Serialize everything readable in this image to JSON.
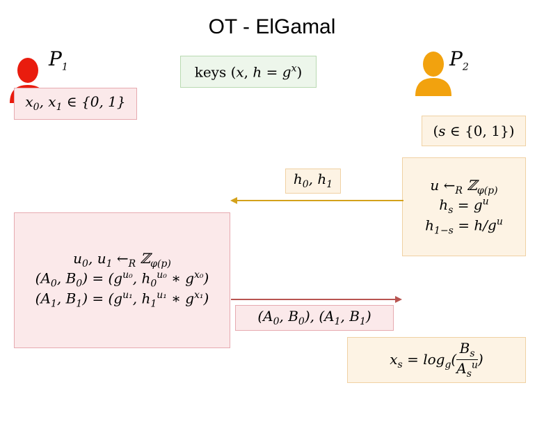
{
  "title": "OT - ElGamal",
  "party1": {
    "label": "P1",
    "color": "#e91c0e",
    "inputs": "x0, x1 ∈ {0,1}"
  },
  "party2": {
    "label": "P2",
    "color": "#f2a20e",
    "choice": "(s ∈ {0,1})"
  },
  "keys": "keys (x, h = g^x)",
  "p2_compute": [
    "u ←R Zφ(p)",
    "hs = g^u",
    "h1−s = h / g^u"
  ],
  "msg1": "h0, h1",
  "p1_compute": [
    "u0, u1 ←R Zφ(p)",
    "(A0, B0) = (g^u0, h0^u0 ∗ g^x0)",
    "(A1, B1) = (g^u1, h1^u1 ∗ g^x1)"
  ],
  "msg2": "(A0, B0), (A1, B1)",
  "result": "xs = logg(Bs / As^u)",
  "colors": {
    "arrow1": "#d4a21b",
    "arrow2": "#b85450"
  }
}
